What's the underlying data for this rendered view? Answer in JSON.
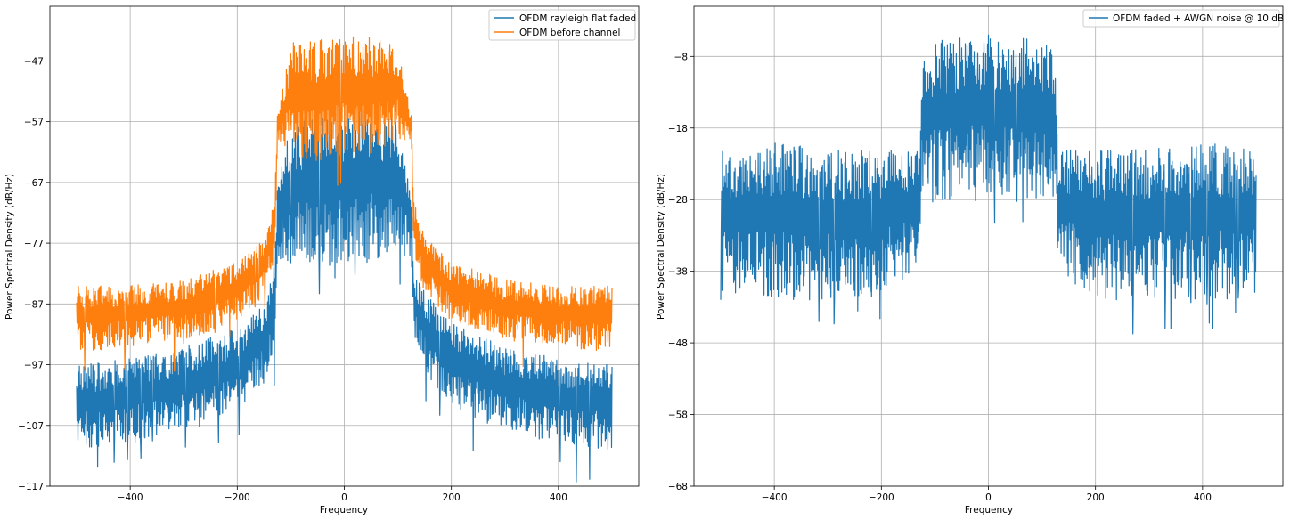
{
  "figure": {
    "panels": [
      {
        "xlabel": "Frequency",
        "ylabel": "Power Spectral Density (dB/Hz)",
        "legend": [
          "OFDM rayleigh flat faded",
          "OFDM before channel"
        ]
      },
      {
        "xlabel": "Frequency",
        "ylabel": "Power Spectral Density (dB/Hz)",
        "legend": [
          "OFDM faded + AWGN noise @ 10 dB"
        ]
      }
    ]
  },
  "chart_data": [
    {
      "type": "line",
      "xlabel": "Frequency",
      "ylabel": "Power Spectral Density (dB/Hz)",
      "xlim": [
        -550,
        550
      ],
      "ylim": [
        -117,
        -38
      ],
      "xticks": [
        -400,
        -200,
        0,
        200,
        400
      ],
      "yticks": [
        -117,
        -107,
        -97,
        -87,
        -77,
        -67,
        -57,
        -47
      ],
      "grid": true,
      "legend_position": "top-right",
      "series": [
        {
          "name": "OFDM rayleigh flat faded",
          "color": "#1f77b4",
          "x": [
            -500,
            -400,
            -300,
            -200,
            -150,
            -130,
            -125,
            -100,
            -50,
            0,
            50,
            100,
            125,
            130,
            150,
            200,
            300,
            400,
            500
          ],
          "y_max": [
            -97,
            -96,
            -94,
            -91,
            -87,
            -80,
            -68,
            -57,
            -56,
            -55,
            -55,
            -56,
            -68,
            -82,
            -85,
            -90,
            -94,
            -96,
            -97
          ],
          "y_min": [
            -111,
            -110,
            -108,
            -105,
            -100,
            -95,
            -80,
            -80,
            -82,
            -80,
            -80,
            -78,
            -80,
            -92,
            -98,
            -104,
            -108,
            -110,
            -111
          ]
        },
        {
          "name": "OFDM before channel",
          "color": "#ff7f0e",
          "x": [
            -500,
            -400,
            -300,
            -200,
            -150,
            -130,
            -125,
            -100,
            -50,
            0,
            50,
            100,
            125,
            130,
            150,
            200,
            300,
            400,
            500
          ],
          "y_max": [
            -84,
            -84,
            -83,
            -80,
            -76,
            -70,
            -56,
            -44,
            -43,
            -43,
            -43,
            -44,
            -56,
            -70,
            -76,
            -80,
            -83,
            -84,
            -84
          ],
          "y_min": [
            -95,
            -94,
            -93,
            -90,
            -85,
            -80,
            -60,
            -62,
            -65,
            -62,
            -63,
            -60,
            -60,
            -80,
            -85,
            -90,
            -93,
            -94,
            -95
          ]
        }
      ]
    },
    {
      "type": "line",
      "xlabel": "Frequency",
      "ylabel": "Power Spectral Density (dB/Hz)",
      "xlim": [
        -550,
        550
      ],
      "ylim": [
        -68,
        -1
      ],
      "xticks": [
        -400,
        -200,
        0,
        200,
        400
      ],
      "yticks": [
        -68,
        -58,
        -48,
        -38,
        -28,
        -18,
        -8
      ],
      "grid": true,
      "legend_position": "top-right",
      "series": [
        {
          "name": "OFDM faded + AWGN noise @ 10 dB",
          "color": "#1f77b4",
          "x": [
            -500,
            -400,
            -300,
            -200,
            -130,
            -125,
            -100,
            -50,
            0,
            50,
            100,
            125,
            130,
            200,
            300,
            400,
            500
          ],
          "y_max": [
            -21,
            -20,
            -21,
            -21,
            -21,
            -7,
            -6,
            -5,
            -5,
            -5,
            -6,
            -7,
            -21,
            -21,
            -21,
            -20,
            -21
          ],
          "y_min": [
            -41,
            -42,
            -42,
            -41,
            -38,
            -28,
            -28,
            -28,
            -27,
            -28,
            -28,
            -28,
            -38,
            -42,
            -42,
            -42,
            -41
          ]
        }
      ]
    }
  ]
}
